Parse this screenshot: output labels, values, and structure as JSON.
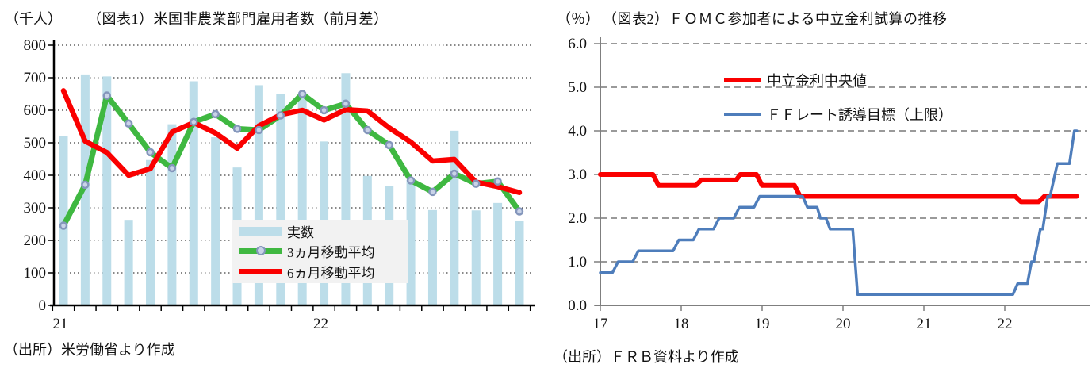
{
  "page": {
    "background": "#ffffff"
  },
  "chart_data": [
    {
      "type": "bar",
      "title": "（図表1）米国非農業部門雇用者数（前月差）",
      "unit_label": "（千人）",
      "source": "（出所）米労働省より作成",
      "ylim": [
        0,
        800
      ],
      "y_ticks": [
        0,
        100,
        200,
        300,
        400,
        500,
        600,
        700,
        800
      ],
      "grid": "dotted-black",
      "x_months": 22,
      "x_start": "2021-01",
      "x_year_labels": [
        {
          "label": "21",
          "month_index": 0
        },
        {
          "label": "22",
          "month_index": 12
        }
      ],
      "legend_position": "inside-lower-right",
      "series": [
        {
          "name": "実数",
          "type": "bar",
          "color": "#BCDDE9",
          "values": [
            520,
            710,
            704,
            263,
            447,
            557,
            689,
            517,
            424,
            677,
            650,
            645,
            504,
            714,
            398,
            368,
            386,
            293,
            537,
            292,
            315,
            261
          ]
        },
        {
          "name": "3ヵ月移動平均",
          "type": "line",
          "color": "#3FB841",
          "marker_fill": "#C9D3E8",
          "marker_stroke": "#8496BB",
          "values": [
            245,
            371,
            645,
            559,
            471,
            422,
            564,
            588,
            543,
            539,
            584,
            650,
            600,
            620,
            539,
            493,
            384,
            349,
            405,
            374,
            381,
            289
          ]
        },
        {
          "name": "6ヵ月移動平均",
          "type": "line",
          "color": "#FA0000",
          "values": [
            660,
            505,
            470,
            400,
            420,
            533,
            562,
            530,
            483,
            552,
            586,
            600,
            570,
            602,
            598,
            546,
            502,
            444,
            449,
            379,
            365,
            347
          ]
        }
      ]
    },
    {
      "type": "line",
      "title": "（図表2）ＦＯＭＣ参加者による中立金利試算の推移",
      "unit_label": "（％）",
      "source": "（出所）ＦＲＢ資料より作成",
      "ylim": [
        0,
        6
      ],
      "y_tick_labels": [
        "0.0",
        "1.0",
        "2.0",
        "3.0",
        "4.0",
        "5.0",
        "6.0"
      ],
      "x_ticks": [
        "17",
        "18",
        "19",
        "20",
        "21",
        "22"
      ],
      "xlim": [
        17,
        22.95
      ],
      "grid": "dashed-gray",
      "legend_position": "inside-upper-center",
      "series": [
        {
          "name": "中立金利中央値",
          "color": "#FA0000",
          "width": 6,
          "points": [
            [
              17.0,
              3.0
            ],
            [
              17.65,
              3.0
            ],
            [
              17.72,
              2.75
            ],
            [
              18.18,
              2.75
            ],
            [
              18.25,
              2.875
            ],
            [
              18.68,
              2.875
            ],
            [
              18.73,
              3.0
            ],
            [
              18.93,
              3.0
            ],
            [
              19.0,
              2.75
            ],
            [
              19.4,
              2.75
            ],
            [
              19.47,
              2.5
            ],
            [
              22.13,
              2.5
            ],
            [
              22.2,
              2.375
            ],
            [
              22.42,
              2.375
            ],
            [
              22.49,
              2.5
            ],
            [
              22.89,
              2.5
            ]
          ]
        },
        {
          "name": "ＦＦレート誘導目標（上限）",
          "color": "#4E7DBB",
          "width": 3.5,
          "points": [
            [
              17.0,
              0.75
            ],
            [
              17.15,
              0.75
            ],
            [
              17.22,
              1.0
            ],
            [
              17.4,
              1.0
            ],
            [
              17.47,
              1.25
            ],
            [
              17.9,
              1.25
            ],
            [
              17.97,
              1.5
            ],
            [
              18.15,
              1.5
            ],
            [
              18.22,
              1.75
            ],
            [
              18.4,
              1.75
            ],
            [
              18.47,
              2.0
            ],
            [
              18.65,
              2.0
            ],
            [
              18.72,
              2.25
            ],
            [
              18.9,
              2.25
            ],
            [
              18.97,
              2.5
            ],
            [
              19.5,
              2.5
            ],
            [
              19.56,
              2.25
            ],
            [
              19.68,
              2.25
            ],
            [
              19.72,
              2.0
            ],
            [
              19.79,
              2.0
            ],
            [
              19.84,
              1.75
            ],
            [
              20.12,
              1.75
            ],
            [
              20.18,
              0.25
            ],
            [
              22.1,
              0.25
            ],
            [
              22.16,
              0.5
            ],
            [
              22.28,
              0.5
            ],
            [
              22.33,
              1.0
            ],
            [
              22.36,
              1.0
            ],
            [
              22.44,
              1.75
            ],
            [
              22.47,
              1.75
            ],
            [
              22.53,
              2.5
            ],
            [
              22.56,
              2.5
            ],
            [
              22.65,
              3.25
            ],
            [
              22.8,
              3.25
            ],
            [
              22.86,
              4.0
            ],
            [
              22.89,
              4.0
            ]
          ]
        }
      ]
    }
  ]
}
